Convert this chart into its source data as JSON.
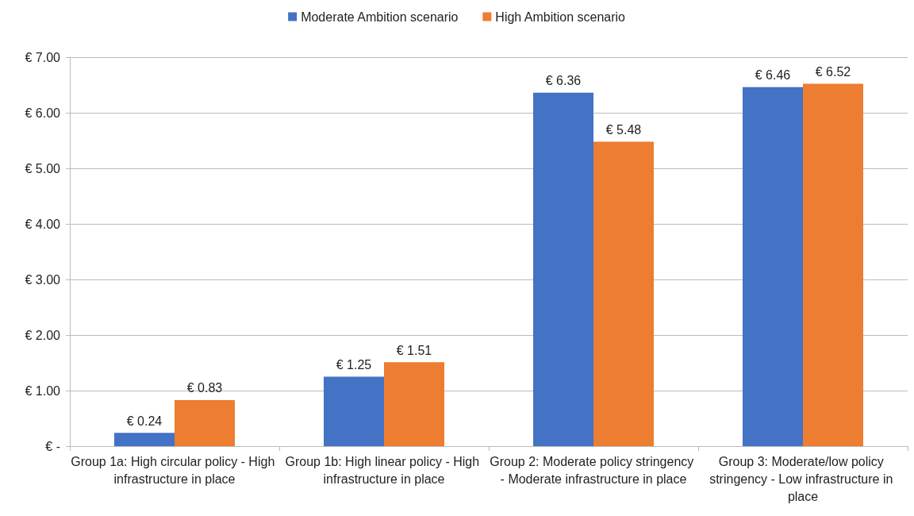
{
  "chart_data": {
    "type": "bar",
    "categories": [
      "Group 1a: High circular policy - High infrastructure in place",
      "Group 1b: High linear policy - High infrastructure in place",
      "Group 2: Moderate policy stringency - Moderate infrastructure in place",
      "Group 3: Moderate/low policy stringency - Low infrastructure in place"
    ],
    "series": [
      {
        "name": "Moderate Ambition scenario",
        "color": "#4472c4",
        "values": [
          0.24,
          1.25,
          6.36,
          6.46
        ],
        "value_labels": [
          "€ 0.24",
          "€ 1.25",
          "€ 6.36",
          "€ 6.46"
        ]
      },
      {
        "name": "High Ambition scenario",
        "color": "#ed7d31",
        "values": [
          0.83,
          1.51,
          5.48,
          6.52
        ],
        "value_labels": [
          "€ 0.83",
          "€ 1.51",
          "€ 5.48",
          "€ 6.52"
        ]
      }
    ],
    "ylim": [
      0,
      7
    ],
    "yticks": [
      {
        "value": 0,
        "label": "€ -"
      },
      {
        "value": 1,
        "label": "€ 1.00"
      },
      {
        "value": 2,
        "label": "€ 2.00"
      },
      {
        "value": 3,
        "label": "€ 3.00"
      },
      {
        "value": 4,
        "label": "€ 4.00"
      },
      {
        "value": 5,
        "label": "€ 5.00"
      },
      {
        "value": 6,
        "label": "€ 6.00"
      },
      {
        "value": 7,
        "label": "€ 7.00"
      }
    ],
    "grid": "y",
    "legend": "top"
  }
}
